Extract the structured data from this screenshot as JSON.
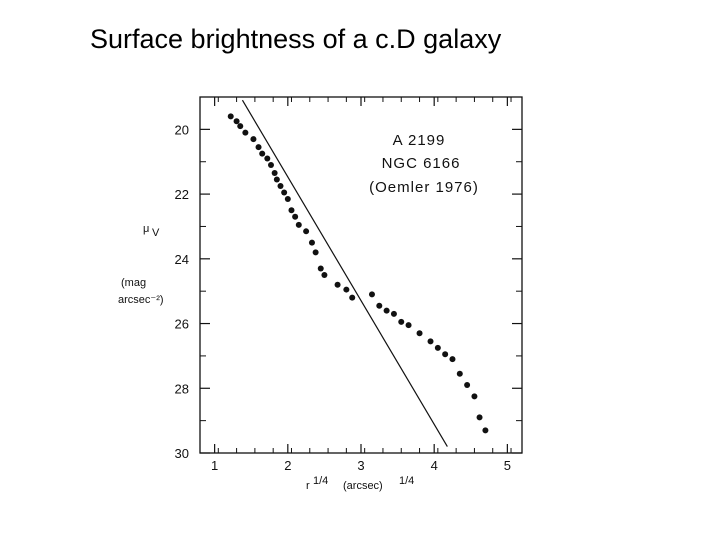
{
  "slide": {
    "title": "Surface brightness of a c.D galaxy"
  },
  "chart_data": {
    "type": "scatter",
    "title": "",
    "xlabel": "r 1/4 (arcsec) 1/4",
    "ylabel": "μ V (mag arcsec⁻²)",
    "xlim": [
      0.8,
      5.2
    ],
    "ylim": [
      30.0,
      19.0
    ],
    "x_ticks": [
      1,
      2,
      3,
      4,
      5
    ],
    "y_ticks": [
      20,
      22,
      24,
      26,
      28,
      30
    ],
    "grid": false,
    "annotation": [
      "A 2199",
      "NGC 6166",
      "(Oemler 1976)"
    ],
    "ylabel_lines": [
      "μ",
      "V",
      "(mag",
      "arcsec⁻²)"
    ],
    "xlabel_parts": {
      "r": "r",
      "r_exp": "1/4",
      "unit": "(arcsec)",
      "unit_exp": "1/4"
    },
    "series": [
      {
        "type": "scatter",
        "x": [
          1.22,
          1.3,
          1.35,
          1.42,
          1.53,
          1.6,
          1.65,
          1.72,
          1.77,
          1.82,
          1.85,
          1.9,
          1.95,
          2.0,
          2.05,
          2.1,
          2.15,
          2.25,
          2.33,
          2.38,
          2.45,
          2.5,
          2.68,
          2.8,
          2.88,
          3.15,
          3.25,
          3.35,
          3.45,
          3.55,
          3.65,
          3.8,
          3.95,
          4.05,
          4.15,
          4.25,
          4.35,
          4.45,
          4.55,
          4.62,
          4.7
        ],
        "y": [
          19.6,
          19.75,
          19.9,
          20.1,
          20.3,
          20.55,
          20.75,
          20.9,
          21.1,
          21.35,
          21.55,
          21.75,
          21.95,
          22.15,
          22.5,
          22.7,
          22.95,
          23.15,
          23.5,
          23.8,
          24.3,
          24.5,
          24.8,
          24.95,
          25.2,
          25.1,
          25.45,
          25.6,
          25.7,
          25.95,
          26.05,
          26.3,
          26.55,
          26.75,
          26.95,
          27.1,
          27.55,
          27.9,
          28.25,
          28.9,
          29.3
        ]
      },
      {
        "type": "line",
        "x": [
          1.38,
          4.18
        ],
        "y": [
          19.1,
          29.8
        ]
      }
    ]
  }
}
